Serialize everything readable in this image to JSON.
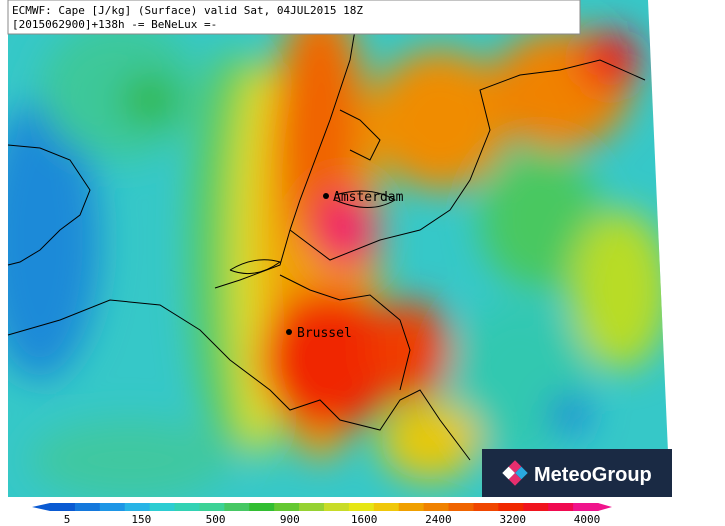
{
  "header": {
    "title": "ECMWF: Cape [J/kg] (Surface) valid Sat, 04JUL2015 18Z",
    "subtitle": "[2015062900]+138h -= BeNeLux =-"
  },
  "places": [
    {
      "label": "Amsterdam"
    },
    {
      "label": "Brussel"
    }
  ],
  "logo": {
    "label": "MeteoGroup"
  },
  "colorbar": {
    "ticks": [
      5,
      150,
      500,
      900,
      1600,
      2400,
      3200,
      4000
    ],
    "colors": [
      "#0a5ad2",
      "#1478dc",
      "#1e96e6",
      "#28b4e6",
      "#2ccdd2",
      "#32d2b4",
      "#3cd296",
      "#46c864",
      "#32be32",
      "#64c832",
      "#96d232",
      "#c8dc28",
      "#e6e614",
      "#f0c80a",
      "#f0a000",
      "#f08200",
      "#f06400",
      "#f04600",
      "#f02800",
      "#f0141e",
      "#f00a50",
      "#f0148c"
    ]
  }
}
